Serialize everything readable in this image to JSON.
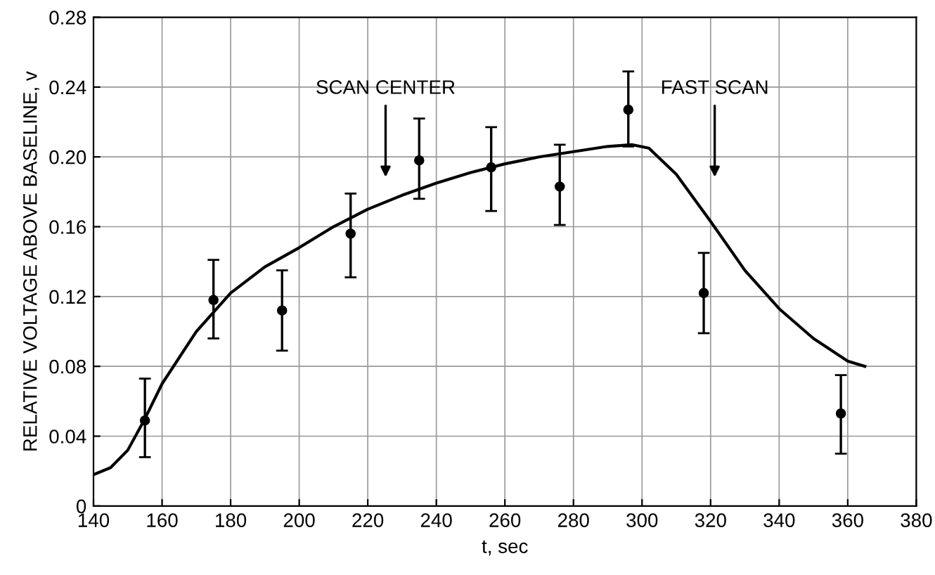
{
  "chart_data": {
    "type": "scatter",
    "xlabel": "t, sec",
    "ylabel": "RELATIVE VOLTAGE ABOVE BASELINE, v",
    "series": [
      {
        "color": "#000000",
        "marker": "circle",
        "x": [
          155,
          175,
          195,
          215,
          235,
          256,
          276,
          296,
          318,
          358
        ],
        "values": [
          0.049,
          0.118,
          0.112,
          0.156,
          0.198,
          0.194,
          0.183,
          0.227,
          0.122,
          0.053
        ],
        "errors": [
          [
            0.028,
            0.073
          ],
          [
            0.096,
            0.141
          ],
          [
            0.089,
            0.135
          ],
          [
            0.131,
            0.179
          ],
          [
            0.176,
            0.222
          ],
          [
            0.169,
            0.217
          ],
          [
            0.161,
            0.207
          ],
          [
            0.206,
            0.249
          ],
          [
            0.099,
            0.145
          ],
          [
            0.03,
            0.075
          ]
        ]
      },
      {
        "type": "line",
        "color": "#000000",
        "x": [
          140,
          145,
          150,
          155,
          160,
          170,
          180,
          190,
          200,
          210,
          220,
          230,
          240,
          250,
          260,
          270,
          280,
          290,
          297,
          302,
          310,
          320,
          330,
          340,
          350,
          360,
          365
        ],
        "values": [
          0.018,
          0.022,
          0.032,
          0.05,
          0.07,
          0.1,
          0.122,
          0.137,
          0.148,
          0.16,
          0.17,
          0.178,
          0.185,
          0.191,
          0.196,
          0.2,
          0.203,
          0.206,
          0.207,
          0.205,
          0.19,
          0.163,
          0.135,
          0.113,
          0.096,
          0.083,
          0.08
        ]
      }
    ],
    "annotations": [
      "SCAN CENTER",
      "FAST SCAN"
    ],
    "xlim": [
      140,
      380
    ],
    "xticks": [
      140,
      160,
      180,
      200,
      220,
      240,
      260,
      280,
      300,
      320,
      340,
      360,
      380
    ],
    "ylim": [
      0,
      0.28
    ],
    "yticks": [
      0,
      {
        "value": 0.04,
        "label": "0.04"
      },
      {
        "value": 0.08,
        "label": "0.08"
      },
      {
        "value": 0.12,
        "label": "0.12"
      },
      {
        "value": 0.16,
        "label": "0.16"
      },
      {
        "value": 0.2,
        "label": "0.20"
      },
      {
        "value": 0.24,
        "label": "0.24"
      },
      {
        "value": 0.28,
        "label": "0.28"
      }
    ],
    "grid": true
  }
}
